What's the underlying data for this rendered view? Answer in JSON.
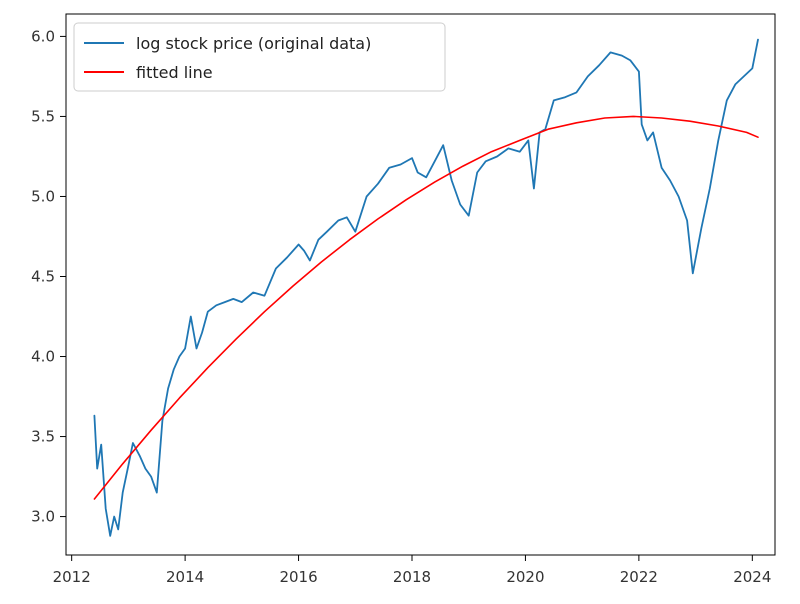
{
  "chart_data": {
    "type": "line",
    "title": "",
    "xlabel": "",
    "ylabel": "",
    "xlim": [
      2011.9,
      2024.4
    ],
    "ylim": [
      2.76,
      6.14
    ],
    "x_ticks": [
      2012,
      2014,
      2016,
      2018,
      2020,
      2022,
      2024
    ],
    "x_tick_labels": [
      "2012",
      "2014",
      "2016",
      "2018",
      "2020",
      "2022",
      "2024"
    ],
    "y_ticks": [
      3.0,
      3.5,
      4.0,
      4.5,
      5.0,
      5.5,
      6.0
    ],
    "y_tick_labels": [
      "3.0",
      "3.5",
      "4.0",
      "4.5",
      "5.0",
      "5.5",
      "6.0"
    ],
    "grid": false,
    "legend_position": "top-left",
    "series": [
      {
        "name": "log stock price (original data)",
        "color": "#1f77b4",
        "x": [
          2012.4,
          2012.45,
          2012.52,
          2012.6,
          2012.68,
          2012.75,
          2012.82,
          2012.9,
          2013.0,
          2013.08,
          2013.2,
          2013.3,
          2013.4,
          2013.5,
          2013.6,
          2013.7,
          2013.8,
          2013.9,
          2014.0,
          2014.1,
          2014.2,
          2014.3,
          2014.4,
          2014.55,
          2014.7,
          2014.85,
          2015.0,
          2015.2,
          2015.4,
          2015.6,
          2015.8,
          2016.0,
          2016.1,
          2016.2,
          2016.35,
          2016.5,
          2016.7,
          2016.85,
          2017.0,
          2017.2,
          2017.4,
          2017.6,
          2017.8,
          2018.0,
          2018.1,
          2018.25,
          2018.4,
          2018.55,
          2018.7,
          2018.85,
          2019.0,
          2019.15,
          2019.3,
          2019.5,
          2019.7,
          2019.9,
          2020.05,
          2020.15,
          2020.25,
          2020.35,
          2020.5,
          2020.7,
          2020.9,
          2021.1,
          2021.3,
          2021.5,
          2021.7,
          2021.85,
          2022.0,
          2022.05,
          2022.15,
          2022.25,
          2022.4,
          2022.55,
          2022.7,
          2022.85,
          2022.95,
          2023.1,
          2023.25,
          2023.4,
          2023.55,
          2023.7,
          2023.85,
          2024.0,
          2024.1
        ],
        "y": [
          3.63,
          3.3,
          3.45,
          3.05,
          2.88,
          3.0,
          2.92,
          3.15,
          3.32,
          3.46,
          3.38,
          3.3,
          3.25,
          3.15,
          3.6,
          3.8,
          3.92,
          4.0,
          4.05,
          4.25,
          4.05,
          4.15,
          4.28,
          4.32,
          4.34,
          4.36,
          4.34,
          4.4,
          4.38,
          4.55,
          4.62,
          4.7,
          4.66,
          4.6,
          4.73,
          4.78,
          4.85,
          4.87,
          4.78,
          5.0,
          5.08,
          5.18,
          5.2,
          5.24,
          5.15,
          5.12,
          5.22,
          5.32,
          5.1,
          4.95,
          4.88,
          5.15,
          5.22,
          5.25,
          5.3,
          5.28,
          5.35,
          5.05,
          5.4,
          5.42,
          5.6,
          5.62,
          5.65,
          5.75,
          5.82,
          5.9,
          5.88,
          5.85,
          5.78,
          5.45,
          5.35,
          5.4,
          5.18,
          5.1,
          5.0,
          4.85,
          4.52,
          4.8,
          5.05,
          5.35,
          5.6,
          5.7,
          5.75,
          5.8,
          5.98
        ]
      },
      {
        "name": "fitted line",
        "color": "#ff0000",
        "x": [
          2012.4,
          2012.9,
          2013.4,
          2013.9,
          2014.4,
          2014.9,
          2015.4,
          2015.9,
          2016.4,
          2016.9,
          2017.4,
          2017.9,
          2018.4,
          2018.9,
          2019.4,
          2019.9,
          2020.4,
          2020.9,
          2021.4,
          2021.9,
          2022.4,
          2022.9,
          2023.4,
          2023.9,
          2024.1
        ],
        "y": [
          3.11,
          3.33,
          3.54,
          3.74,
          3.93,
          4.11,
          4.28,
          4.44,
          4.59,
          4.73,
          4.86,
          4.98,
          5.09,
          5.19,
          5.28,
          5.35,
          5.42,
          5.46,
          5.49,
          5.5,
          5.49,
          5.47,
          5.44,
          5.4,
          5.37
        ]
      }
    ]
  }
}
